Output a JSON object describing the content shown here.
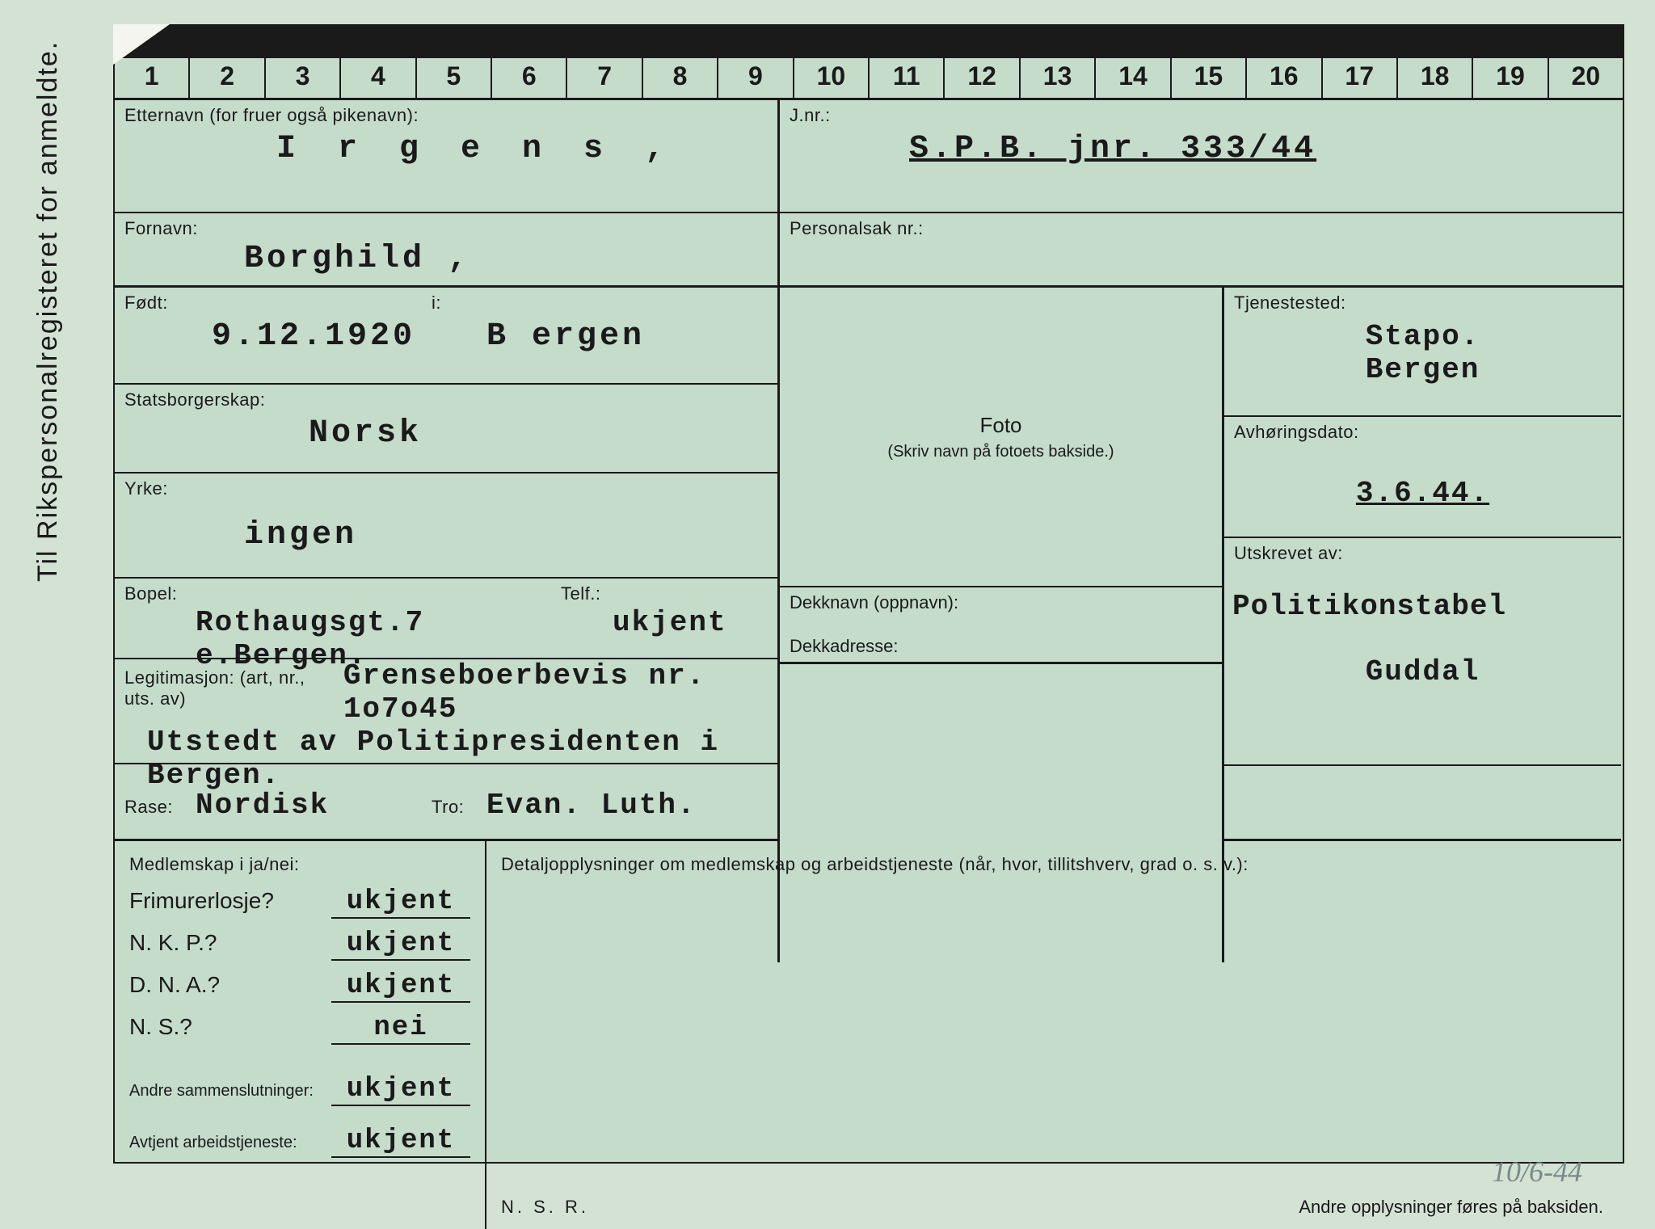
{
  "sideText": "Til Rikspersonalregisteret for anmeldte.",
  "ruler": [
    "1",
    "2",
    "3",
    "4",
    "5",
    "6",
    "7",
    "8",
    "9",
    "10",
    "11",
    "12",
    "13",
    "14",
    "15",
    "16",
    "17",
    "18",
    "19",
    "20"
  ],
  "surname": {
    "label": "Etternavn (for fruer også pikenavn):",
    "value": "I r g e n s ,"
  },
  "jnr": {
    "label": "J.nr.:",
    "value": "S.P.B. jnr. 333/44"
  },
  "firstname": {
    "label": "Fornavn:",
    "value": "Borghild ,"
  },
  "personalsak": {
    "label": "Personalsak nr.:",
    "value": ""
  },
  "born": {
    "label": "Født:",
    "label2": "i:",
    "value": "9.12.1920",
    "place": "B ergen"
  },
  "citizenship": {
    "label": "Statsborgerskap:",
    "value": "Norsk"
  },
  "occupation": {
    "label": "Yrke:",
    "value": "ingen"
  },
  "residence": {
    "label": "Bopel:",
    "label2": "Telf.:",
    "value": "Rothaugsgt.7 e.Bergen.",
    "phone": "ukjent"
  },
  "legitimation": {
    "label": "Legitimasjon: (art, nr., uts. av)",
    "value": "Grenseboerbevis nr. 1o7o45",
    "value2": "Utstedt av Politipresidenten i Bergen."
  },
  "race": {
    "label": "Rase:",
    "value": "Nordisk",
    "label2": "Tro:",
    "value2": "Evan. Luth."
  },
  "foto": {
    "title": "Foto",
    "sub": "(Skriv navn på fotoets bakside.)"
  },
  "tjenestested": {
    "label": "Tjenestested:",
    "value1": "Stapo.",
    "value2": "Bergen"
  },
  "avhoringsdato": {
    "label": "Avhøringsdato:",
    "value": "3.6.44."
  },
  "utskrevet": {
    "label": "Utskrevet av:",
    "value1": "Politikonstabel",
    "value2": "Guddal"
  },
  "dekknavn": {
    "label": "Dekknavn (oppnavn):",
    "label2": "Dekkadresse:"
  },
  "membership": {
    "header": "Medlemskap i ja/nei:",
    "items": [
      {
        "label": "Frimurerlosje?",
        "value": "ukjent"
      },
      {
        "label": "N. K. P.?",
        "value": "ukjent"
      },
      {
        "label": "D. N. A.?",
        "value": "ukjent"
      },
      {
        "label": "N. S.?",
        "value": "nei"
      }
    ],
    "andre": {
      "label": "Andre sammenslutninger:",
      "value": "ukjent"
    },
    "avtjent": {
      "label": "Avtjent arbeidstjeneste:",
      "value": "ukjent"
    }
  },
  "details": {
    "header": "Detaljopplysninger om medlemskap og arbeidstjeneste (når, hvor, tillitshverv, grad o. s. v.):"
  },
  "footer": {
    "left": "N. S. R.",
    "right": "Andre opplysninger føres på baksiden."
  },
  "handwritten": "10/6-44"
}
